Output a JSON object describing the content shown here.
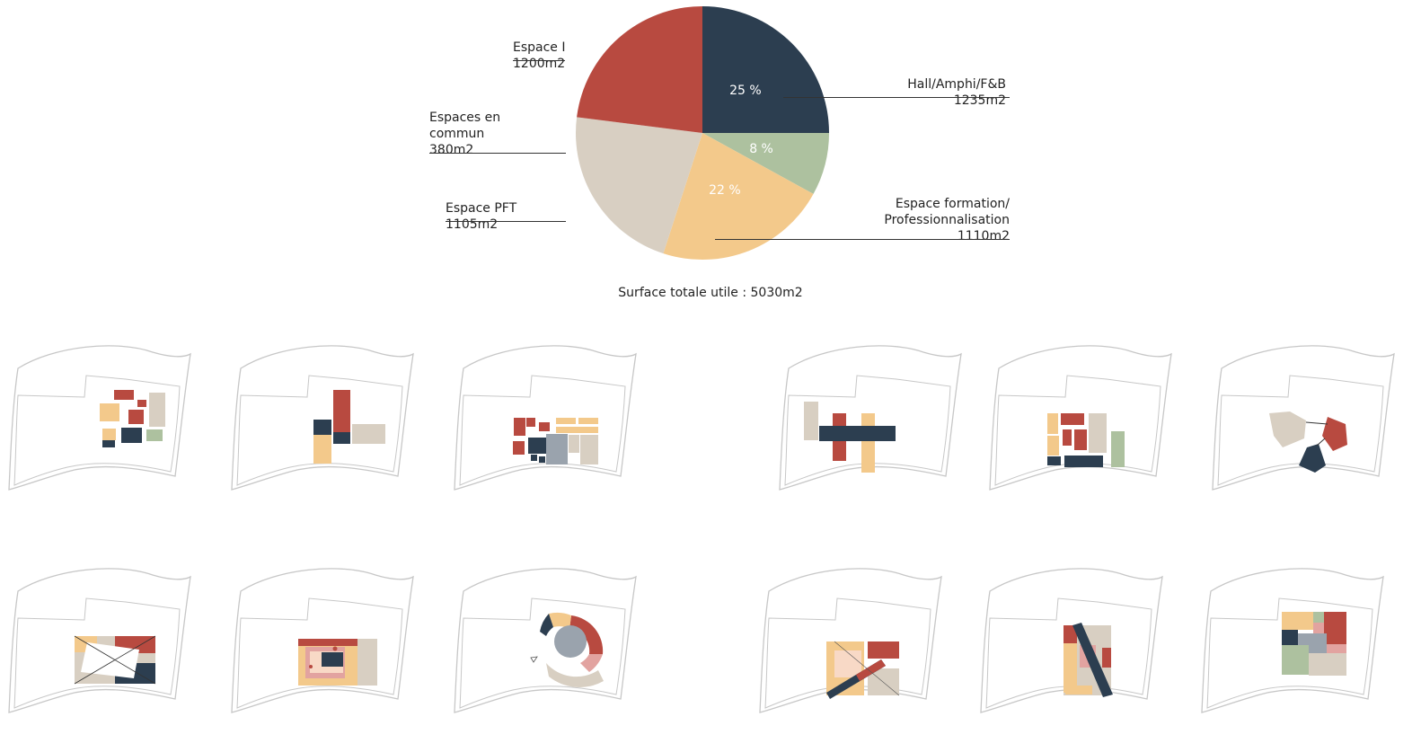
{
  "chart_data": {
    "type": "pie",
    "start_angle_deg": 0,
    "direction": "clockwise",
    "slices": [
      {
        "label": "Hall/Amphi/F&B",
        "area": "1235m2",
        "value": 25,
        "value_label": "25 %",
        "color": "#2c3e50"
      },
      {
        "label": "",
        "area": "",
        "value": 8,
        "value_label": "8 %",
        "color": "#adc19f"
      },
      {
        "label": "Espace formation/\nProfessionnalisation",
        "area": "1110m2",
        "value": 22,
        "value_label": "22 %",
        "color": "#f3c98b"
      },
      {
        "label": "Espace PFT",
        "area": "1105m2",
        "value": 22,
        "value_label": "",
        "color": "#d8cfc2"
      },
      {
        "label": "Espaces en\ncommun",
        "area": "380m2",
        "value": 0,
        "value_label": "",
        "color": "#d8cfc2"
      },
      {
        "label": "Espace I",
        "area": "1200m2",
        "value": 23,
        "value_label": "",
        "color": "#b84a40"
      }
    ],
    "total_label": "Surface totale utile : 5030m2"
  },
  "palette": {
    "navy": "#2c3e50",
    "red": "#b84a40",
    "sage": "#adc19f",
    "sand": "#f3c98b",
    "beige": "#d8cfc2",
    "pink": "#e2a3a0",
    "grey": "#9aa3ad"
  },
  "diagrams": {
    "count": 12,
    "description_icon": "site-plan-icon"
  }
}
